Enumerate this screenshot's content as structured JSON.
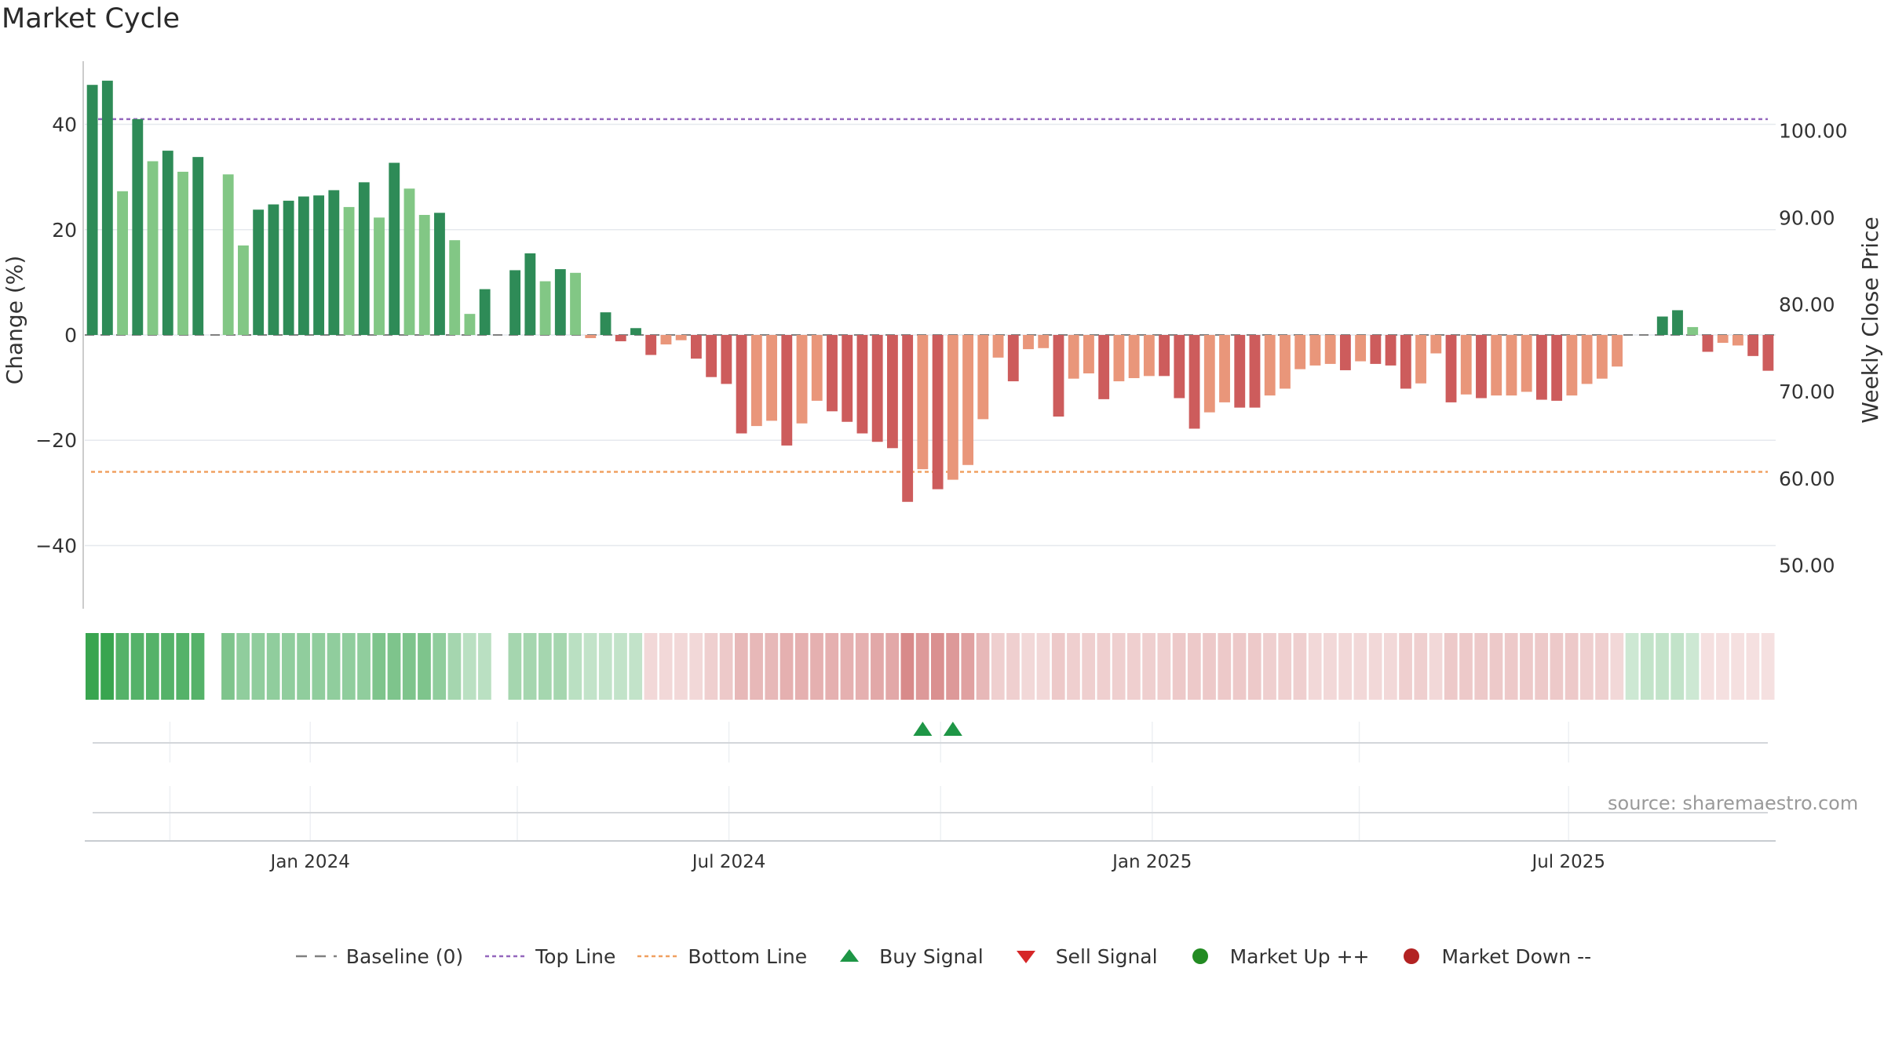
{
  "title": "Market Cycle",
  "source": "source: sharemaestro.com",
  "colors": {
    "up_strong": "#2e8b57",
    "up_weak": "#82c785",
    "down_strong": "#cd5c5c",
    "down_weak": "#e9967a",
    "top_line": "#9467bd",
    "bottom_line": "#f0a060",
    "baseline": "#808080",
    "buy": "#1e9646",
    "sell": "#d62728",
    "market_up": "#228b22",
    "market_down": "#b22222"
  },
  "legend": [
    {
      "label": "Baseline (0)",
      "icon": "dash-line-icon"
    },
    {
      "label": "Top Line",
      "icon": "dotted-purple-line-icon"
    },
    {
      "label": "Bottom Line",
      "icon": "dotted-orange-line-icon"
    },
    {
      "label": "Buy Signal",
      "icon": "triangle-up-icon"
    },
    {
      "label": "Sell Signal",
      "icon": "triangle-down-icon"
    },
    {
      "label": "Market Up ++",
      "icon": "green-dot-icon"
    },
    {
      "label": "Market Down --",
      "icon": "red-dot-icon"
    }
  ],
  "chart_data": {
    "type": "bar",
    "title": "Market Cycle",
    "ylabel": "Change (%)",
    "y2label": "Weekly Close Price",
    "ylim": [
      -52,
      52
    ],
    "yticks": [
      40,
      20,
      0,
      -20,
      -40
    ],
    "ytick_labels": [
      "40",
      "20",
      "0",
      "−20",
      "−40"
    ],
    "y2lim": [
      45,
      108
    ],
    "y2ticks": [
      100,
      90,
      80,
      70,
      60,
      50
    ],
    "y2tick_labels": [
      "100.00",
      "90.00",
      "80.00",
      "70.00",
      "60.00",
      "50.00"
    ],
    "top_line": 41,
    "bottom_line": -26,
    "x_start": "2023-09-25",
    "x_end": "2025-09-29",
    "x_ticks": [
      {
        "date": "2024-01-01",
        "label": "Jan 2024"
      },
      {
        "date": "2024-07-01",
        "label": "Jul 2024"
      },
      {
        "date": "2025-01-01",
        "label": "Jan 2025"
      },
      {
        "date": "2025-07-01",
        "label": "Jul 2025"
      }
    ],
    "strip_grid_dates": [
      "2023-11-01",
      "2024-01-01",
      "2024-03-31",
      "2024-07-01",
      "2024-10-01",
      "2025-01-01",
      "2025-04-01",
      "2025-07-01"
    ],
    "values": [
      47.5,
      48.3,
      27.3,
      41.0,
      33.0,
      35.0,
      31.0,
      33.8,
      0,
      30.5,
      17.0,
      23.8,
      24.8,
      25.5,
      26.3,
      26.5,
      27.5,
      24.3,
      29.0,
      22.3,
      32.7,
      27.8,
      22.8,
      23.2,
      18.0,
      4.0,
      8.7,
      0,
      12.3,
      15.5,
      10.2,
      12.5,
      11.8,
      -0.6,
      4.3,
      -1.2,
      1.3,
      -3.8,
      -1.8,
      -1.0,
      -4.5,
      -8.0,
      -9.3,
      -18.7,
      -17.3,
      -16.3,
      -21.0,
      -16.8,
      -12.5,
      -14.5,
      -16.5,
      -18.7,
      -20.3,
      -21.5,
      -31.7,
      -25.5,
      -29.3,
      -27.5,
      -24.7,
      -16.0,
      -4.3,
      -8.8,
      -2.7,
      -2.5,
      -15.5,
      -8.3,
      -7.3,
      -12.2,
      -8.8,
      -8.2,
      -7.8,
      -7.8,
      -12.0,
      -17.8,
      -14.7,
      -12.8,
      -13.8,
      -13.8,
      -11.5,
      -10.2,
      -6.5,
      -5.8,
      -5.5,
      -6.7,
      -5.0,
      -5.5,
      -5.8,
      -10.2,
      -9.2,
      -3.5,
      -12.8,
      -11.3,
      -12.0,
      -11.5,
      -11.5,
      -10.8,
      -12.3,
      -12.5,
      -11.5,
      -9.3,
      -8.3,
      -6.0,
      0,
      0,
      3.5,
      4.7,
      1.5,
      -3.2,
      -1.5,
      -2.0,
      -4.0,
      -6.8
    ],
    "intensity": [
      "s",
      "s",
      "w",
      "s",
      "w",
      "s",
      "w",
      "s",
      "n",
      "w",
      "w",
      "s",
      "s",
      "s",
      "s",
      "s",
      "s",
      "w",
      "s",
      "w",
      "s",
      "w",
      "w",
      "s",
      "w",
      "w",
      "s",
      "n",
      "s",
      "s",
      "w",
      "s",
      "w",
      "w",
      "s",
      "s",
      "s",
      "s",
      "w",
      "w",
      "s",
      "s",
      "s",
      "s",
      "w",
      "w",
      "s",
      "w",
      "w",
      "s",
      "s",
      "s",
      "s",
      "s",
      "s",
      "w",
      "s",
      "w",
      "w",
      "w",
      "w",
      "s",
      "w",
      "w",
      "s",
      "w",
      "w",
      "s",
      "w",
      "w",
      "w",
      "s",
      "s",
      "s",
      "w",
      "w",
      "s",
      "s",
      "w",
      "w",
      "w",
      "w",
      "w",
      "s",
      "w",
      "s",
      "s",
      "s",
      "w",
      "w",
      "s",
      "w",
      "s",
      "w",
      "w",
      "w",
      "s",
      "s",
      "w",
      "w",
      "w",
      "w",
      "n",
      "n",
      "s",
      "s",
      "w",
      "s",
      "w",
      "w",
      "s",
      "s"
    ],
    "regime_strip": [
      0.95,
      0.95,
      0.8,
      0.8,
      0.8,
      0.8,
      0.8,
      0.8,
      null,
      0.6,
      0.5,
      0.5,
      0.5,
      0.5,
      0.5,
      0.5,
      0.5,
      0.5,
      0.5,
      0.6,
      0.6,
      0.6,
      0.6,
      0.5,
      0.4,
      0.3,
      0.3,
      null,
      0.4,
      0.4,
      0.4,
      0.4,
      0.3,
      0.25,
      0.25,
      0.25,
      0.25,
      -0.2,
      -0.2,
      -0.2,
      -0.2,
      -0.25,
      -0.3,
      -0.4,
      -0.4,
      -0.4,
      -0.45,
      -0.45,
      -0.45,
      -0.45,
      -0.45,
      -0.45,
      -0.5,
      -0.5,
      -0.7,
      -0.6,
      -0.65,
      -0.6,
      -0.55,
      -0.4,
      -0.25,
      -0.25,
      -0.2,
      -0.2,
      -0.3,
      -0.25,
      -0.25,
      -0.25,
      -0.25,
      -0.25,
      -0.25,
      -0.25,
      -0.3,
      -0.3,
      -0.3,
      -0.3,
      -0.3,
      -0.3,
      -0.25,
      -0.25,
      -0.25,
      -0.2,
      -0.2,
      -0.2,
      -0.2,
      -0.2,
      -0.2,
      -0.25,
      -0.25,
      -0.2,
      -0.3,
      -0.3,
      -0.3,
      -0.3,
      -0.3,
      -0.3,
      -0.3,
      -0.3,
      -0.3,
      -0.25,
      -0.25,
      -0.2,
      0.2,
      0.25,
      0.25,
      0.25,
      0.2,
      -0.15,
      -0.15,
      -0.15,
      -0.15,
      -0.15
    ],
    "buy_signals": [
      55,
      57
    ],
    "sell_signals": [],
    "market_up": [],
    "market_down": []
  }
}
